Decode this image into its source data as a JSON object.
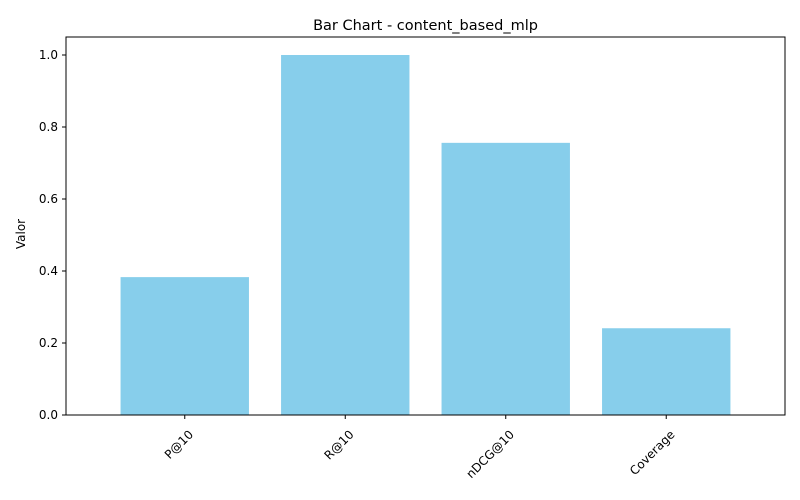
{
  "chart_data": {
    "type": "bar",
    "title": "Bar Chart - content_based_mlp",
    "xlabel": "",
    "ylabel": "Valor",
    "categories": [
      "P@10",
      "R@10",
      "nDCG@10",
      "Coverage"
    ],
    "values": [
      0.383,
      1.0,
      0.756,
      0.241
    ],
    "ylim": [
      0,
      1.05
    ],
    "yticks": [
      0.0,
      0.2,
      0.4,
      0.6,
      0.8,
      1.0
    ],
    "ytick_labels": [
      "0.0",
      "0.2",
      "0.4",
      "0.6",
      "0.8",
      "1.0"
    ],
    "xtick_rotation_deg": 45,
    "grid": false,
    "legend": "none",
    "bar_color": "#87CEEB",
    "axis_color": "#000000"
  }
}
